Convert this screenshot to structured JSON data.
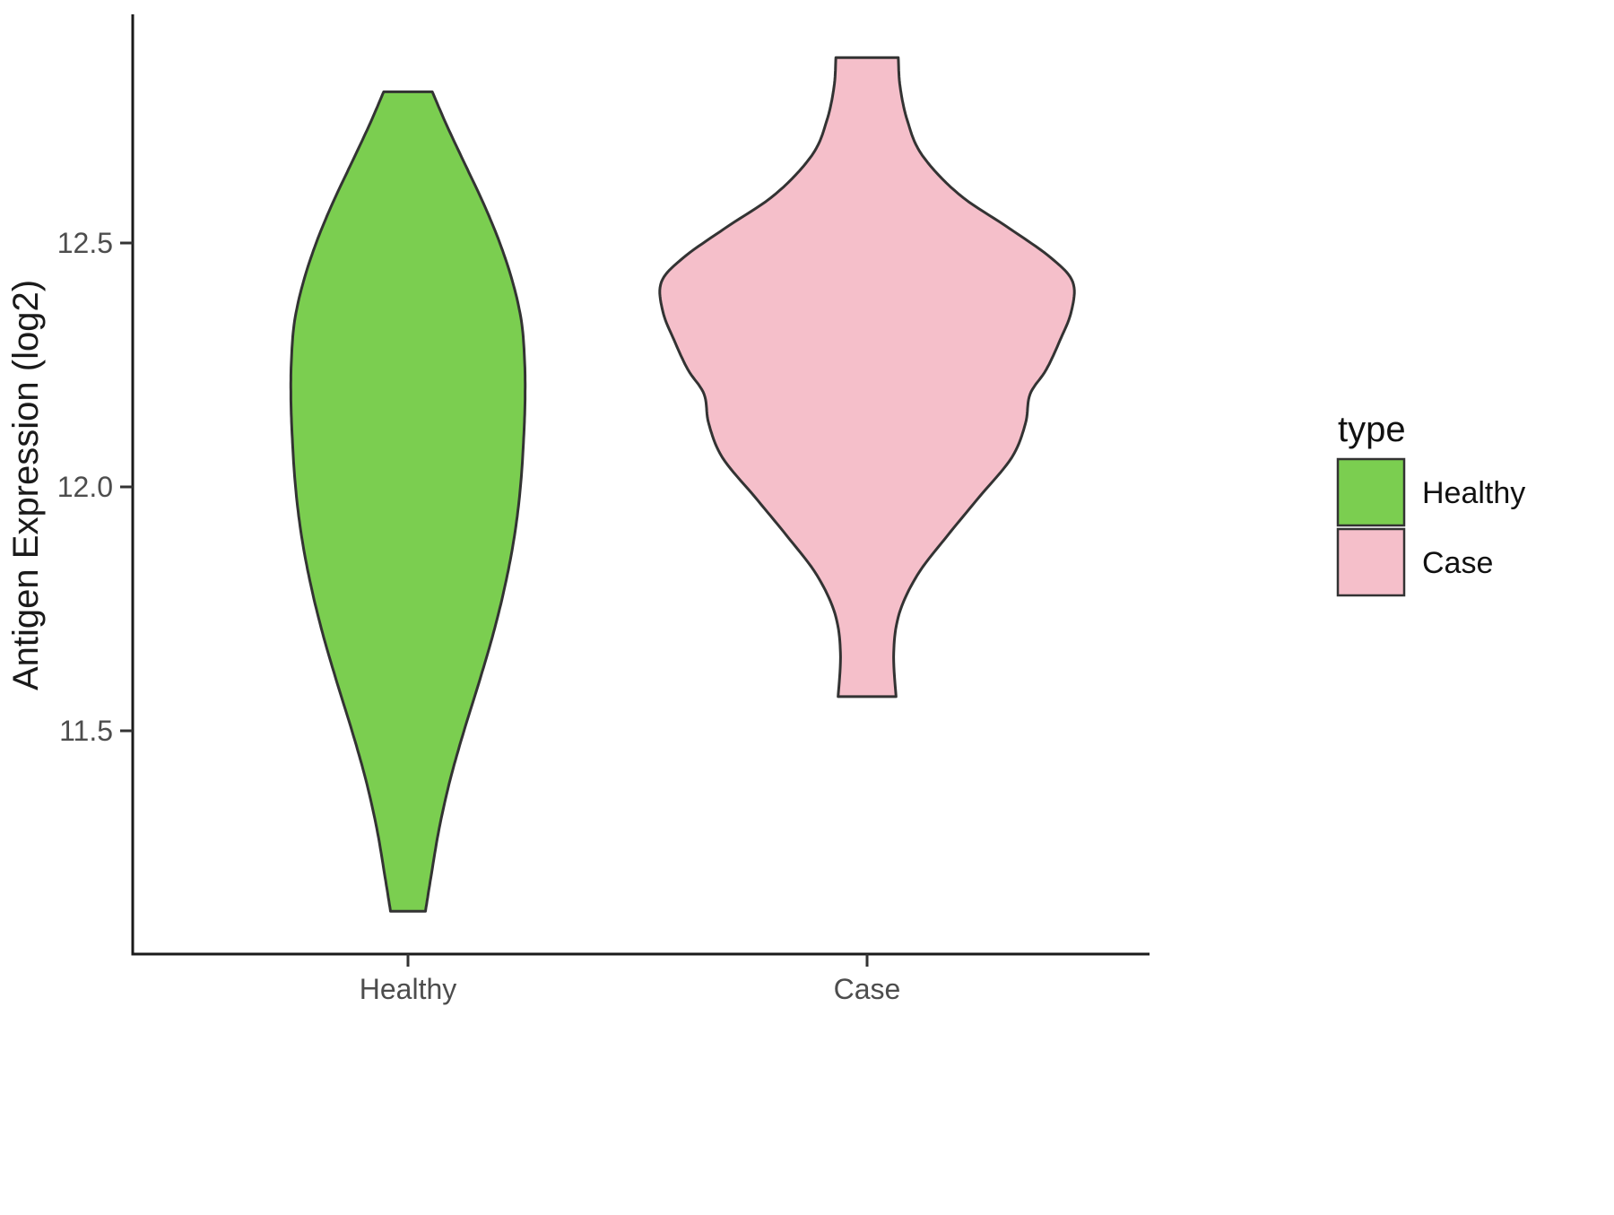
{
  "chart_data": {
    "type": "violin",
    "title": "",
    "xlabel": "",
    "ylabel": "Antigen Expression (log2)",
    "categories": [
      "Healthy",
      "Case"
    ],
    "y_ticks": [
      12.5,
      12.0,
      11.5
    ],
    "y_tick_labels": [
      "12.5",
      "12.0",
      "11.5"
    ],
    "ylim": [
      11.05,
      12.95
    ],
    "grid": false,
    "legend_position": "right",
    "outline_color": "#333333",
    "legend": {
      "title": "type",
      "entries": [
        {
          "label": "Healthy",
          "color": "#7bce50"
        },
        {
          "label": "Case",
          "color": "#f5bfca"
        }
      ]
    },
    "series": [
      {
        "name": "Healthy",
        "color": "#7bce50",
        "x": 1,
        "profile": [
          [
            12.81,
            0.053
          ],
          [
            12.74,
            0.085
          ],
          [
            12.66,
            0.125
          ],
          [
            12.58,
            0.165
          ],
          [
            12.5,
            0.2
          ],
          [
            12.42,
            0.228
          ],
          [
            12.34,
            0.247
          ],
          [
            12.26,
            0.254
          ],
          [
            12.18,
            0.255
          ],
          [
            12.1,
            0.252
          ],
          [
            12.0,
            0.245
          ],
          [
            11.9,
            0.232
          ],
          [
            11.8,
            0.212
          ],
          [
            11.7,
            0.186
          ],
          [
            11.6,
            0.155
          ],
          [
            11.5,
            0.122
          ],
          [
            11.4,
            0.092
          ],
          [
            11.3,
            0.068
          ],
          [
            11.2,
            0.05
          ],
          [
            11.13,
            0.038
          ]
        ]
      },
      {
        "name": "Case",
        "color": "#f5bfca",
        "x": 2,
        "profile": [
          [
            12.88,
            0.068
          ],
          [
            12.82,
            0.072
          ],
          [
            12.75,
            0.088
          ],
          [
            12.68,
            0.12
          ],
          [
            12.6,
            0.2
          ],
          [
            12.53,
            0.31
          ],
          [
            12.47,
            0.4
          ],
          [
            12.42,
            0.448
          ],
          [
            12.36,
            0.445
          ],
          [
            12.3,
            0.42
          ],
          [
            12.24,
            0.39
          ],
          [
            12.19,
            0.355
          ],
          [
            12.13,
            0.345
          ],
          [
            12.06,
            0.315
          ],
          [
            11.98,
            0.245
          ],
          [
            11.9,
            0.175
          ],
          [
            11.82,
            0.11
          ],
          [
            11.74,
            0.07
          ],
          [
            11.66,
            0.058
          ],
          [
            11.57,
            0.063
          ]
        ]
      }
    ]
  }
}
